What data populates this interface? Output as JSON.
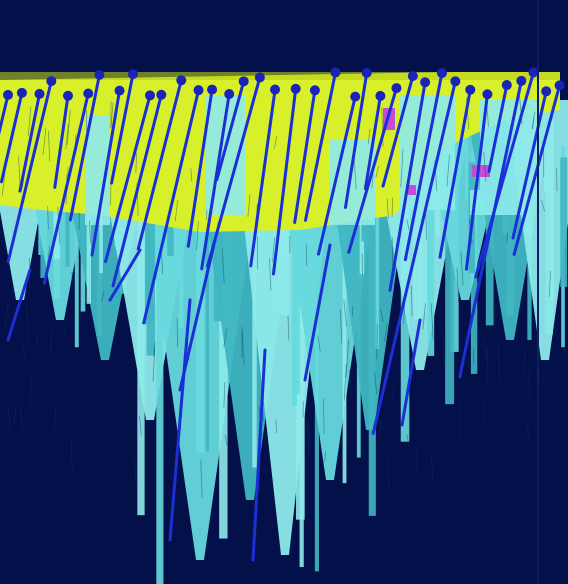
{
  "scene": {
    "description_kind": "3d-render",
    "colors": {
      "background": "#03104a",
      "ore_surface": "#d8f02a",
      "ore_dark": "#b7cf16",
      "body_light": "#8eeaea",
      "body_mid": "#66d9dd",
      "body_shadow": "#3fb6c1",
      "drillhole": "#1c2fd4",
      "drillhole_cap": "#1a24b8",
      "magenta_patch": "#c64cd8",
      "grid_line": "#0f1f63"
    }
  }
}
